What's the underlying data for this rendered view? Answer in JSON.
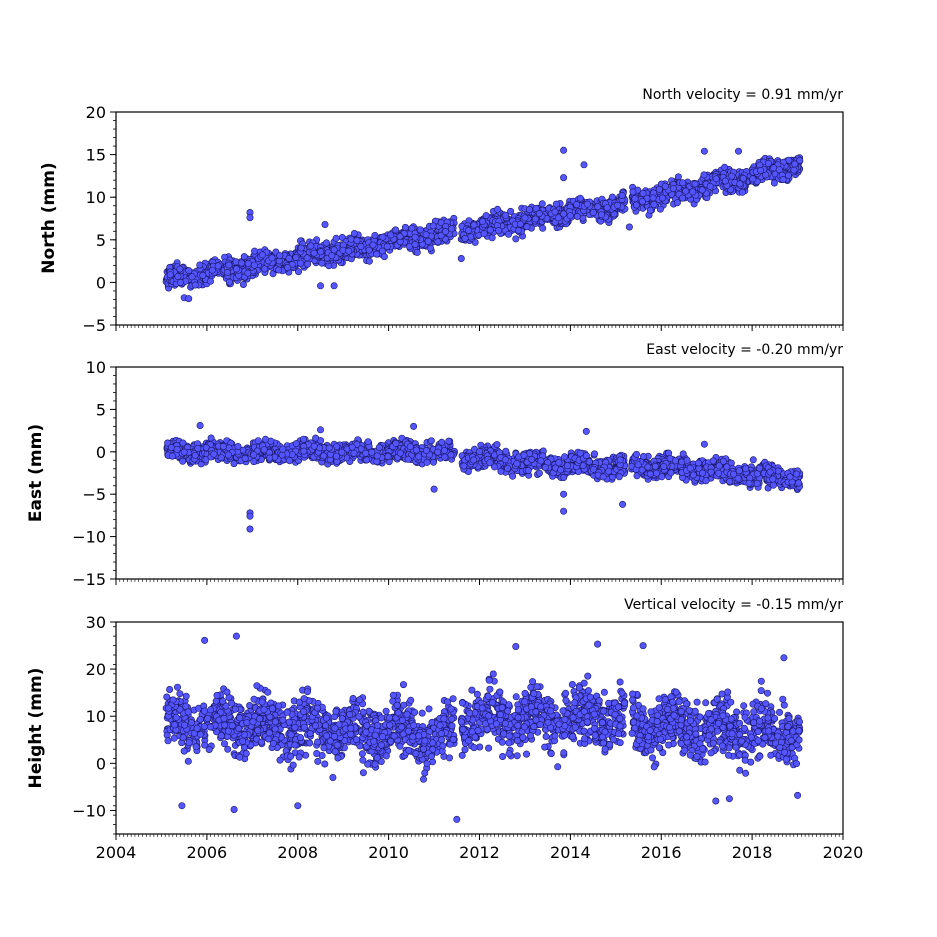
{
  "chart_data": [
    {
      "type": "scatter",
      "title": "North velocity = 0.91 mm/yr",
      "ylabel": "North (mm)",
      "xlim": [
        2004,
        2020
      ],
      "ylim": [
        -5,
        20
      ],
      "yticks": [
        -5,
        0,
        5,
        10,
        15,
        20
      ],
      "yticklabels": [
        "−5",
        "0",
        "5",
        "10",
        "15",
        "20"
      ],
      "segments": [
        {
          "x": [
            2005.1,
            2011.45
          ],
          "trend": [
            0.3,
            6.0
          ],
          "spread": 1.1
        },
        {
          "x": [
            2011.6,
            2015.2
          ],
          "trend": [
            6.0,
            9.3
          ],
          "spread": 1.0
        },
        {
          "x": [
            2015.35,
            2019.05
          ],
          "trend": [
            9.5,
            13.8
          ],
          "spread": 1.0
        }
      ],
      "outliers": [
        [
          2005.5,
          -1.8
        ],
        [
          2005.6,
          -1.9
        ],
        [
          2006.95,
          8.2
        ],
        [
          2006.95,
          7.6
        ],
        [
          2008.6,
          6.8
        ],
        [
          2008.5,
          -0.4
        ],
        [
          2008.8,
          -0.4
        ],
        [
          2011.6,
          2.8
        ],
        [
          2013.85,
          15.5
        ],
        [
          2013.85,
          12.3
        ],
        [
          2014.3,
          13.8
        ],
        [
          2016.95,
          15.4
        ],
        [
          2017.7,
          15.4
        ],
        [
          2015.3,
          6.5
        ]
      ],
      "dot_color": "#5555ff"
    },
    {
      "type": "scatter",
      "title": "East velocity = -0.20 mm/yr",
      "ylabel": "East (mm)",
      "xlim": [
        2004,
        2020
      ],
      "ylim": [
        -15,
        10
      ],
      "yticks": [
        -15,
        -10,
        -5,
        0,
        5,
        10
      ],
      "yticklabels": [
        "−15",
        "−10",
        "−5",
        "0",
        "5",
        "10"
      ],
      "segments": [
        {
          "x": [
            2005.1,
            2011.45
          ],
          "trend": [
            0.0,
            0.0
          ],
          "spread": 0.9
        },
        {
          "x": [
            2011.6,
            2015.2
          ],
          "trend": [
            -0.7,
            -2.0
          ],
          "spread": 1.0
        },
        {
          "x": [
            2015.35,
            2019.05
          ],
          "trend": [
            -1.5,
            -3.2
          ],
          "spread": 1.0
        }
      ],
      "outliers": [
        [
          2006.95,
          -7.2
        ],
        [
          2006.95,
          -7.6
        ],
        [
          2006.95,
          -9.1
        ],
        [
          2005.85,
          3.1
        ],
        [
          2008.5,
          2.6
        ],
        [
          2010.55,
          3.0
        ],
        [
          2011.0,
          -4.4
        ],
        [
          2013.85,
          -7.0
        ],
        [
          2013.85,
          -5.0
        ],
        [
          2014.35,
          2.4
        ],
        [
          2015.15,
          -6.2
        ],
        [
          2016.95,
          0.9
        ]
      ],
      "dot_color": "#5555ff"
    },
    {
      "type": "scatter",
      "title": "Vertical velocity = -0.15 mm/yr",
      "ylabel": "Height (mm)",
      "xlim": [
        2004,
        2020
      ],
      "ylim": [
        -15,
        30
      ],
      "yticks": [
        -10,
        0,
        10,
        20,
        30
      ],
      "yticklabels": [
        "−10",
        "0",
        "10",
        "20",
        "30"
      ],
      "xticks": [
        2004,
        2006,
        2008,
        2010,
        2012,
        2014,
        2016,
        2018,
        2020
      ],
      "xticklabels": [
        "2004",
        "2006",
        "2008",
        "2010",
        "2012",
        "2014",
        "2016",
        "2018",
        "2020"
      ],
      "segments": [
        {
          "x": [
            2005.1,
            2011.45
          ],
          "trend": [
            9.0,
            6.0
          ],
          "spread": 5.0
        },
        {
          "x": [
            2011.6,
            2015.2
          ],
          "trend": [
            9.5,
            9.5
          ],
          "spread": 5.0
        },
        {
          "x": [
            2015.35,
            2019.05
          ],
          "trend": [
            8.0,
            6.5
          ],
          "spread": 5.0
        }
      ],
      "outliers": [
        [
          2005.45,
          -9.0
        ],
        [
          2006.6,
          -9.8
        ],
        [
          2006.65,
          27.0
        ],
        [
          2005.95,
          26.1
        ],
        [
          2008.0,
          -9.0
        ],
        [
          2011.5,
          -11.9
        ],
        [
          2012.8,
          24.8
        ],
        [
          2014.6,
          25.3
        ],
        [
          2015.6,
          25.0
        ],
        [
          2017.2,
          -8.0
        ],
        [
          2017.5,
          -7.5
        ],
        [
          2018.7,
          22.4
        ],
        [
          2019.0,
          -6.8
        ]
      ],
      "dot_color": "#5555ff"
    }
  ]
}
